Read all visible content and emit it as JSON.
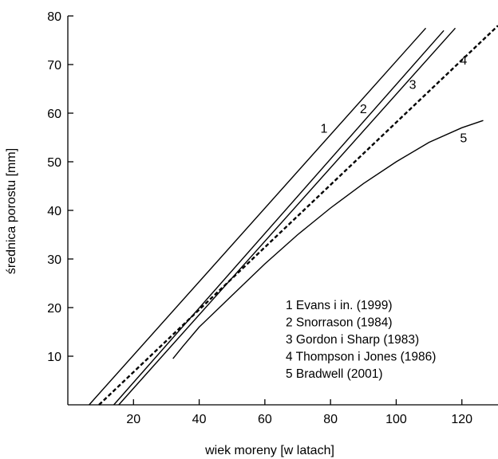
{
  "chart_data": {
    "type": "line",
    "xlabel": "wiek moreny [w latach]",
    "ylabel": "średnica porostu [mm]",
    "xlim": [
      0,
      131
    ],
    "ylim": [
      0,
      80
    ],
    "x_ticks": [
      20,
      40,
      60,
      80,
      100,
      120
    ],
    "y_ticks": [
      10,
      20,
      30,
      40,
      50,
      60,
      70,
      80
    ],
    "grid": false,
    "legend_position": "bottom-right",
    "legend": [
      "1 Evans i in. (1999)",
      "2 Snorrason (1984)",
      "3 Gordon i Sharp (1983)",
      "4 Thompson i Jones (1986)",
      "5 Bradwell (2001)"
    ],
    "series": [
      {
        "label": "1",
        "style": "solid",
        "x": [
          6.5,
          109
        ],
        "y": [
          0,
          77.5
        ]
      },
      {
        "label": "2",
        "style": "solid",
        "x": [
          14,
          114.5
        ],
        "y": [
          0,
          77
        ]
      },
      {
        "label": "3",
        "style": "solid",
        "x": [
          15.5,
          118
        ],
        "y": [
          0,
          77.5
        ]
      },
      {
        "label": "4",
        "style": "dashed",
        "x": [
          9.5,
          131
        ],
        "y": [
          0,
          78
        ]
      },
      {
        "label": "5",
        "style": "solid",
        "x": [
          32,
          35,
          40,
          50,
          60,
          70,
          80,
          90,
          100,
          110,
          120,
          126.5
        ],
        "y": [
          9.5,
          12,
          16,
          22.5,
          29,
          35,
          40.5,
          45.5,
          50,
          54,
          57,
          58.5
        ]
      }
    ],
    "series_labels": [
      {
        "text": "1",
        "x": 78,
        "y": 57
      },
      {
        "text": "2",
        "x": 90,
        "y": 61
      },
      {
        "text": "3",
        "x": 105,
        "y": 66
      },
      {
        "text": "4",
        "x": 120.5,
        "y": 71
      },
      {
        "text": "5",
        "x": 120.5,
        "y": 55
      }
    ]
  }
}
